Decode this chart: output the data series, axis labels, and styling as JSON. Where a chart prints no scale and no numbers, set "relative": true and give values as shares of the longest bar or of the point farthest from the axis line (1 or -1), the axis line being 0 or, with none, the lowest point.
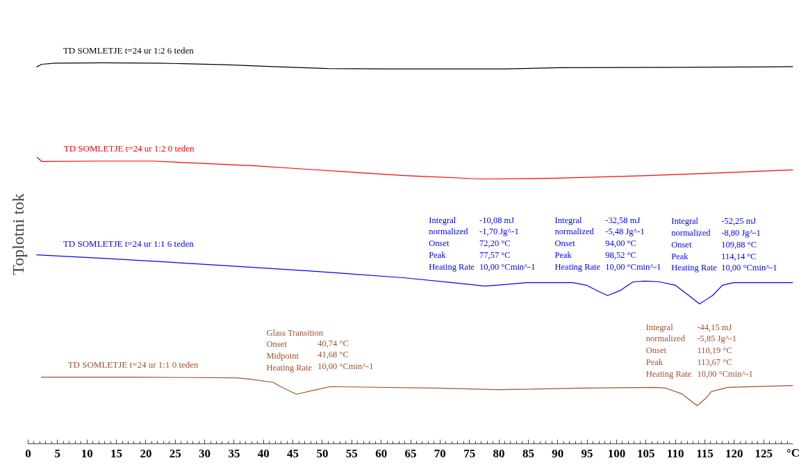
{
  "chart_data": {
    "type": "line",
    "relative": true,
    "ylabel": "Toplotni tok",
    "xlabel": "°C",
    "xlim": [
      0,
      130
    ],
    "xticks": [
      0,
      {
        "value": 1,
        "label": null
      },
      {
        "value": 2,
        "label": null
      },
      {
        "value": 3,
        "label": null
      },
      {
        "value": 4,
        "label": null
      },
      5,
      {
        "value": 6,
        "label": null
      },
      {
        "value": 7,
        "label": null
      },
      {
        "value": 8,
        "label": null
      },
      {
        "value": 9,
        "label": null
      },
      10,
      {
        "value": 11,
        "label": null
      },
      {
        "value": 12,
        "label": null
      },
      {
        "value": 13,
        "label": null
      },
      {
        "value": 14,
        "label": null
      },
      15,
      {
        "value": 16,
        "label": null
      },
      {
        "value": 17,
        "label": null
      },
      {
        "value": 18,
        "label": null
      },
      {
        "value": 19,
        "label": null
      },
      20,
      {
        "value": 21,
        "label": null
      },
      {
        "value": 22,
        "label": null
      },
      {
        "value": 23,
        "label": null
      },
      {
        "value": 24,
        "label": null
      },
      25,
      {
        "value": 26,
        "label": null
      },
      {
        "value": 27,
        "label": null
      },
      {
        "value": 28,
        "label": null
      },
      {
        "value": 29,
        "label": null
      },
      30,
      {
        "value": 31,
        "label": null
      },
      {
        "value": 32,
        "label": null
      },
      {
        "value": 33,
        "label": null
      },
      {
        "value": 34,
        "label": null
      },
      35,
      {
        "value": 36,
        "label": null
      },
      {
        "value": 37,
        "label": null
      },
      {
        "value": 38,
        "label": null
      },
      {
        "value": 39,
        "label": null
      },
      40,
      {
        "value": 41,
        "label": null
      },
      {
        "value": 42,
        "label": null
      },
      {
        "value": 43,
        "label": null
      },
      {
        "value": 44,
        "label": null
      },
      45,
      {
        "value": 46,
        "label": null
      },
      {
        "value": 47,
        "label": null
      },
      {
        "value": 48,
        "label": null
      },
      {
        "value": 49,
        "label": null
      },
      50,
      {
        "value": 51,
        "label": null
      },
      {
        "value": 52,
        "label": null
      },
      {
        "value": 53,
        "label": null
      },
      {
        "value": 54,
        "label": null
      },
      55,
      {
        "value": 56,
        "label": null
      },
      {
        "value": 57,
        "label": null
      },
      {
        "value": 58,
        "label": null
      },
      {
        "value": 59,
        "label": null
      },
      60,
      {
        "value": 61,
        "label": null
      },
      {
        "value": 62,
        "label": null
      },
      {
        "value": 63,
        "label": null
      },
      {
        "value": 64,
        "label": null
      },
      65,
      {
        "value": 66,
        "label": null
      },
      {
        "value": 67,
        "label": null
      },
      {
        "value": 68,
        "label": null
      },
      {
        "value": 69,
        "label": null
      },
      70,
      {
        "value": 71,
        "label": null
      },
      {
        "value": 72,
        "label": null
      },
      {
        "value": 73,
        "label": null
      },
      {
        "value": 74,
        "label": null
      },
      75,
      {
        "value": 76,
        "label": null
      },
      {
        "value": 77,
        "label": null
      },
      {
        "value": 78,
        "label": null
      },
      {
        "value": 79,
        "label": null
      },
      80,
      {
        "value": 81,
        "label": null
      },
      {
        "value": 82,
        "label": null
      },
      {
        "value": 83,
        "label": null
      },
      {
        "value": 84,
        "label": null
      },
      85,
      {
        "value": 86,
        "label": null
      },
      {
        "value": 87,
        "label": null
      },
      {
        "value": 88,
        "label": null
      },
      {
        "value": 89,
        "label": null
      },
      90,
      {
        "value": 91,
        "label": null
      },
      {
        "value": 92,
        "label": null
      },
      {
        "value": 93,
        "label": null
      },
      {
        "value": 94,
        "label": null
      },
      95,
      {
        "value": 96,
        "label": null
      },
      {
        "value": 97,
        "label": null
      },
      {
        "value": 98,
        "label": null
      },
      {
        "value": 99,
        "label": null
      },
      100,
      {
        "value": 101,
        "label": null
      },
      {
        "value": 102,
        "label": null
      },
      {
        "value": 103,
        "label": null
      },
      {
        "value": 104,
        "label": null
      },
      105,
      {
        "value": 106,
        "label": null
      },
      {
        "value": 107,
        "label": null
      },
      {
        "value": 108,
        "label": null
      },
      {
        "value": 109,
        "label": null
      },
      110,
      {
        "value": 111,
        "label": null
      },
      {
        "value": 112,
        "label": null
      },
      {
        "value": 113,
        "label": null
      },
      {
        "value": 114,
        "label": null
      },
      115,
      {
        "value": 116,
        "label": null
      },
      {
        "value": 117,
        "label": null
      },
      {
        "value": 118,
        "label": null
      },
      {
        "value": 119,
        "label": null
      },
      120,
      {
        "value": 121,
        "label": null
      },
      {
        "value": 122,
        "label": null
      },
      {
        "value": 123,
        "label": null
      },
      {
        "value": 124,
        "label": null
      },
      125,
      {
        "value": 126,
        "label": null
      },
      {
        "value": 127,
        "label": null
      },
      {
        "value": 128,
        "label": null
      },
      {
        "value": 129,
        "label": null
      }
    ],
    "series": [
      {
        "name": "TD SOMLETJE t=24 ur 1:2 6 teden",
        "color": "#000000",
        "x": [
          1.4,
          2.3,
          4.6,
          12.7,
          22,
          33.6,
          41.7,
          50.9,
          60.2,
          81,
          90.3,
          111,
          122.7,
          130
        ],
        "values": [
          0.989,
          0.996,
          0.999,
          1.0,
          0.999,
          0.995,
          0.99,
          0.985,
          0.984,
          0.984,
          0.987,
          0.988,
          0.989,
          0.99
        ]
      },
      {
        "name": "TD SOMLETJE t=24 ur 1:2 0 teden",
        "color": "#ff0000",
        "x": [
          1.5,
          2.3,
          12.7,
          21.1,
          29.7,
          38.2,
          46.9,
          64,
          77,
          89.8,
          105.3,
          115.6,
          130
        ],
        "values": [
          0.752,
          0.741,
          0.742,
          0.742,
          0.736,
          0.73,
          0.721,
          0.704,
          0.695,
          0.697,
          0.704,
          0.71,
          0.719
        ]
      },
      {
        "name": "TD SOMLETJE t=24 ur 1:1 6 teden",
        "color": "#0000ff",
        "x": [
          1.4,
          12.7,
          30.1,
          47.5,
          63.7,
          72.1,
          75.2,
          77.6,
          81,
          84.7,
          92.6,
          94.9,
          97.2,
          98.5,
          100.7,
          102.8,
          104.9,
          107.3,
          110,
          112.3,
          114.1,
          116.3,
          118,
          119.9,
          130
        ],
        "values": [
          0.496,
          0.487,
          0.471,
          0.454,
          0.436,
          0.423,
          0.418,
          0.414,
          0.418,
          0.423,
          0.423,
          0.416,
          0.398,
          0.389,
          0.403,
          0.425,
          0.427,
          0.425,
          0.416,
          0.389,
          0.367,
          0.389,
          0.416,
          0.423,
          0.423
        ]
      },
      {
        "name": "TD SOMLETJE t=24 ur 1:1 0 teden",
        "color": "#a0522d",
        "x": [
          2.2,
          18.5,
          35.4,
          37.6,
          41.7,
          42.9,
          45.6,
          48.7,
          51.4,
          69.4,
          79.9,
          93.8,
          106.5,
          108.4,
          111.1,
          113.7,
          115.2,
          116.1,
          118.9,
          130
        ],
        "values": [
          0.175,
          0.175,
          0.173,
          0.17,
          0.161,
          0.15,
          0.13,
          0.141,
          0.15,
          0.146,
          0.142,
          0.146,
          0.148,
          0.146,
          0.131,
          0.1,
          0.12,
          0.137,
          0.148,
          0.153
        ]
      }
    ],
    "annotations": [
      "Integral\nnormalized\nOnset\nPeak\nHeating Rate",
      "-10,08 mJ\n-1,70 Jg^-1\n72,20 °C\n77,57 °C\n10,00 °Cmin^-1",
      "Integral\nnormalized\nOnset\nPeak\nHeating Rate",
      "-32,58 mJ\n-5,48 Jg^-1\n94,00 °C\n98,52 °C\n10,00 °Cmin^-1",
      "Integral\nnormalized\nOnset\nPeak\nHeating Rate",
      "-52,25 mJ\n-8,80 Jg^-1\n109,88 °C\n114,14 °C\n10,00 °Cmin^-1",
      "Glass Transition\nOnset\nMidpoint\nHeating Rate",
      "40,74 °C\n41,68 °C\n10,00 °Cmin^-1",
      "Integral\nnormalized\nOnset\nPeak\nHeating Rate",
      "-44,15 mJ\n-5,85 Jg^-1\n110,19 °C\n113,67 °C\n10,00 °Cmin^-1"
    ]
  }
}
